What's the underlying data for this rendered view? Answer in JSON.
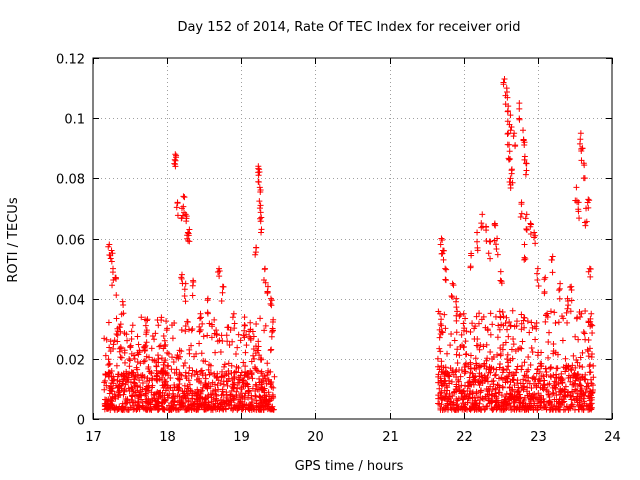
{
  "chart_data": {
    "type": "scatter",
    "title": "Day 152 of 2014, Rate Of TEC Index for receiver orid",
    "xlabel": "GPS time / hours",
    "ylabel": "ROTI / TECUs",
    "xlim": [
      17,
      24
    ],
    "ylim": [
      0,
      0.12
    ],
    "xticks": [
      "17",
      "18",
      "19",
      "20",
      "21",
      "22",
      "23",
      "24"
    ],
    "yticks": [
      "0",
      "0.02",
      "0.04",
      "0.06",
      "0.08",
      "0.1",
      "0.12"
    ],
    "grid": true,
    "marker": "+",
    "color": "#ff0000",
    "segments": [
      {
        "x_start": 17.15,
        "x_end": 19.45,
        "baseline_range": [
          0.003,
          0.016
        ],
        "spikes": [
          [
            17.22,
            0.058
          ],
          [
            17.25,
            0.056
          ],
          [
            17.27,
            0.05
          ],
          [
            17.3,
            0.047
          ],
          [
            17.33,
            0.03
          ],
          [
            17.37,
            0.029
          ],
          [
            17.4,
            0.039
          ],
          [
            17.5,
            0.024
          ],
          [
            17.6,
            0.022
          ],
          [
            17.7,
            0.024
          ],
          [
            17.85,
            0.019
          ],
          [
            17.95,
            0.018
          ],
          [
            18.11,
            0.088
          ],
          [
            18.12,
            0.087
          ],
          [
            18.14,
            0.072
          ],
          [
            18.2,
            0.07
          ],
          [
            18.22,
            0.074
          ],
          [
            18.25,
            0.068
          ],
          [
            18.28,
            0.062
          ],
          [
            18.3,
            0.063
          ],
          [
            18.2,
            0.048
          ],
          [
            18.25,
            0.045
          ],
          [
            18.35,
            0.046
          ],
          [
            18.45,
            0.035
          ],
          [
            18.55,
            0.04
          ],
          [
            18.7,
            0.05
          ],
          [
            18.75,
            0.044
          ],
          [
            18.9,
            0.035
          ],
          [
            19.05,
            0.031
          ],
          [
            19.12,
            0.032
          ],
          [
            19.2,
            0.057
          ],
          [
            19.23,
            0.084
          ],
          [
            19.24,
            0.083
          ],
          [
            19.25,
            0.077
          ],
          [
            19.26,
            0.071
          ],
          [
            19.27,
            0.067
          ],
          [
            19.32,
            0.05
          ],
          [
            19.36,
            0.044
          ],
          [
            19.4,
            0.04
          ],
          [
            19.43,
            0.033
          ]
        ]
      },
      {
        "x_start": 21.65,
        "x_end": 23.75,
        "baseline_range": [
          0.003,
          0.018
        ],
        "spikes": [
          [
            21.7,
            0.06
          ],
          [
            21.72,
            0.056
          ],
          [
            21.75,
            0.05
          ],
          [
            21.68,
            0.035
          ],
          [
            21.85,
            0.045
          ],
          [
            21.9,
            0.04
          ],
          [
            22.0,
            0.035
          ],
          [
            22.1,
            0.055
          ],
          [
            22.18,
            0.062
          ],
          [
            22.25,
            0.068
          ],
          [
            22.3,
            0.064
          ],
          [
            22.35,
            0.059
          ],
          [
            22.42,
            0.065
          ],
          [
            22.45,
            0.06
          ],
          [
            22.5,
            0.049
          ],
          [
            22.55,
            0.113
          ],
          [
            22.58,
            0.11
          ],
          [
            22.6,
            0.104
          ],
          [
            22.63,
            0.101
          ],
          [
            22.6,
            0.095
          ],
          [
            22.62,
            0.089
          ],
          [
            22.65,
            0.083
          ],
          [
            22.63,
            0.08
          ],
          [
            22.68,
            0.095
          ],
          [
            22.75,
            0.105
          ],
          [
            22.8,
            0.096
          ],
          [
            22.82,
            0.092
          ],
          [
            22.84,
            0.085
          ],
          [
            22.78,
            0.072
          ],
          [
            22.85,
            0.068
          ],
          [
            22.9,
            0.065
          ],
          [
            22.95,
            0.062
          ],
          [
            22.82,
            0.058
          ],
          [
            23.0,
            0.05
          ],
          [
            23.1,
            0.047
          ],
          [
            23.2,
            0.054
          ],
          [
            23.3,
            0.045
          ],
          [
            23.4,
            0.04
          ],
          [
            23.45,
            0.044
          ],
          [
            23.52,
            0.077
          ],
          [
            23.55,
            0.072
          ],
          [
            23.58,
            0.095
          ],
          [
            23.6,
            0.09
          ],
          [
            23.62,
            0.085
          ],
          [
            23.65,
            0.07
          ],
          [
            23.68,
            0.073
          ],
          [
            23.7,
            0.05
          ],
          [
            23.72,
            0.035
          ]
        ]
      }
    ]
  }
}
